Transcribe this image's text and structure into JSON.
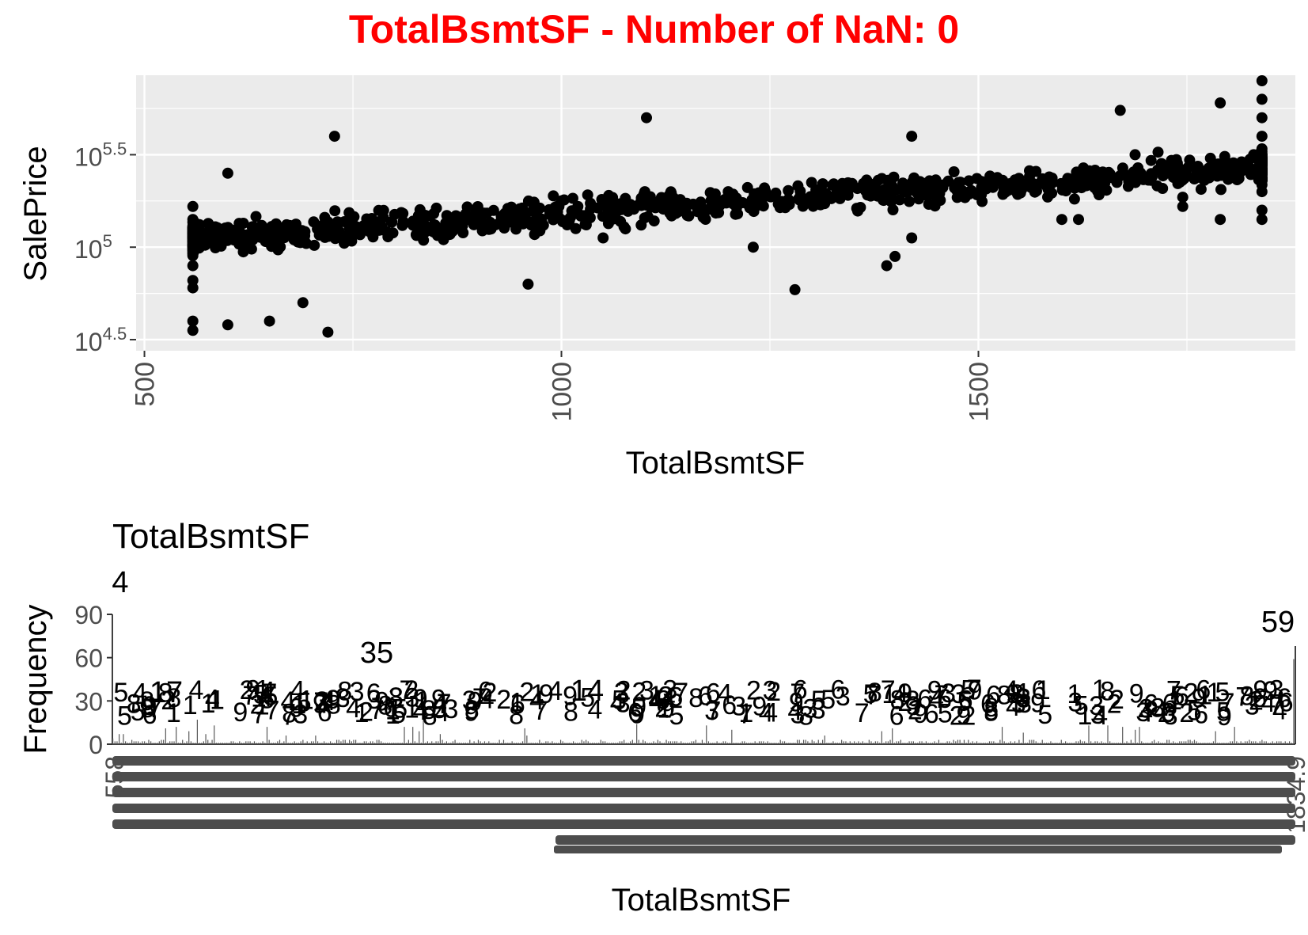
{
  "figure": {
    "title": "TotalBsmtSF - Number of NaN: 0",
    "title_color": "#ff0000"
  },
  "chart_data": [
    {
      "type": "scatter",
      "title": "",
      "xlabel": "TotalBsmtSF",
      "ylabel": "SalePrice",
      "x_ticks": [
        500,
        1000,
        1500
      ],
      "x_range": [
        490,
        1880
      ],
      "y_scale": "log10",
      "y_ticks": [
        {
          "base": "10",
          "exp": "4.5",
          "value": 31623
        },
        {
          "base": "10",
          "exp": "5",
          "value": 100000
        },
        {
          "base": "10",
          "exp": "5.5",
          "value": 316228
        }
      ],
      "y_range": [
        4.44,
        5.93
      ],
      "panel_color": "#ebebeb",
      "grid": true,
      "point_color": "#000000",
      "points_estimated": [
        [
          558,
          4.55
        ],
        [
          558,
          4.6
        ],
        [
          558,
          4.78
        ],
        [
          558,
          4.82
        ],
        [
          558,
          4.9
        ],
        [
          558,
          5.0
        ],
        [
          558,
          5.1
        ],
        [
          558,
          5.15
        ],
        [
          558,
          5.22
        ],
        [
          600,
          4.58
        ],
        [
          650,
          4.6
        ],
        [
          720,
          4.54
        ],
        [
          690,
          4.7
        ],
        [
          728,
          5.6
        ],
        [
          600,
          5.4
        ],
        [
          960,
          4.8
        ],
        [
          1102,
          5.7
        ],
        [
          1280,
          4.77
        ],
        [
          1390,
          4.9
        ],
        [
          1400,
          4.95
        ],
        [
          1420,
          5.6
        ],
        [
          1840,
          5.9
        ],
        [
          1840,
          5.8
        ],
        [
          1840,
          5.7
        ],
        [
          1840,
          5.6
        ],
        [
          1840,
          5.5
        ],
        [
          1840,
          5.4
        ],
        [
          1840,
          5.3
        ],
        [
          1840,
          5.2
        ],
        [
          1840,
          5.15
        ],
        [
          1790,
          5.78
        ],
        [
          1670,
          5.74
        ],
        [
          1830,
          5.5
        ],
        [
          1745,
          5.27
        ],
        [
          1745,
          5.22
        ],
        [
          1790,
          5.15
        ],
        [
          1600,
          5.15
        ],
        [
          1620,
          5.15
        ],
        [
          1420,
          5.05
        ],
        [
          1230,
          5.0
        ],
        [
          1050,
          5.05
        ],
        [
          900,
          5.18
        ],
        [
          1000,
          5.25
        ],
        [
          1100,
          5.3
        ],
        [
          1200,
          5.3
        ],
        [
          1300,
          5.35
        ]
      ]
    },
    {
      "type": "bar",
      "title": "TotalBsmtSF",
      "xlabel": "TotalBsmtSF",
      "ylabel": "Frequency",
      "y_ticks": [
        0,
        30,
        60,
        90
      ],
      "ylim": [
        0,
        90
      ],
      "x_first_label": "558",
      "x_last_label": "1834.9",
      "bar_color": "#595959",
      "visible_value_labels": [
        "4",
        "17",
        "35",
        "14",
        "59"
      ],
      "selected_bars": [
        {
          "category": "558",
          "value": 4
        },
        {
          "category": "~650",
          "value": 17
        },
        {
          "category": "~864",
          "value": 35
        },
        {
          "category": "~1040",
          "value": 14
        },
        {
          "category": "1834.9",
          "value": 59
        }
      ]
    }
  ]
}
